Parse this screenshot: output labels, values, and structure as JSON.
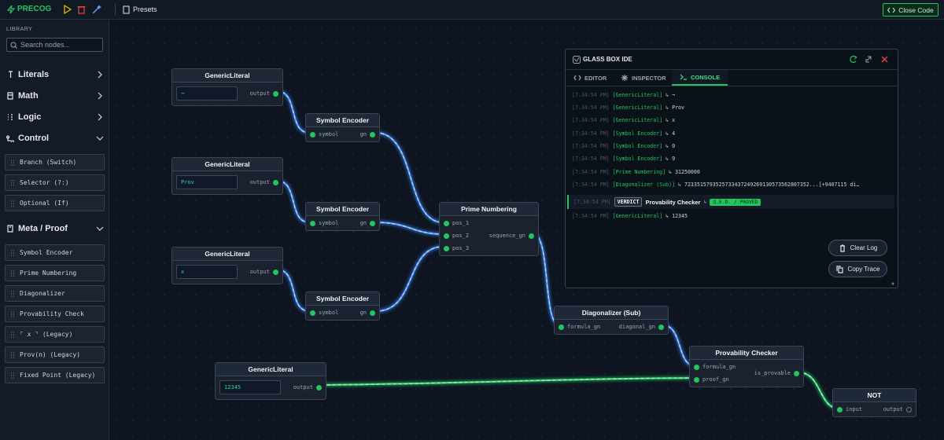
{
  "toolbar": {
    "brand": "PRECOG",
    "presets": "Presets",
    "close": "Close Code"
  },
  "library": {
    "heading": "LIBRARY",
    "search": "Search nodes...",
    "groups": [
      {
        "label": "Literals"
      },
      {
        "label": "Math"
      },
      {
        "label": "Logic"
      },
      {
        "label": "Control",
        "items": [
          "Branch (Switch)",
          "Selector (?:)",
          "Optional (If)"
        ]
      },
      {
        "label": "Meta / Proof",
        "items": [
          "Symbol Encoder",
          "Prime Numbering",
          "Diagonalizer",
          "Provability Check",
          "⌜ x ⌝ (Legacy)",
          "Prov(n) (Legacy)",
          "Fixed Point (Legacy)"
        ]
      }
    ]
  },
  "nodes": [
    {
      "title": "GenericLiteral",
      "value": "¬",
      "outputs": [
        "output"
      ]
    },
    {
      "title": "GenericLiteral",
      "value": "Prov",
      "outputs": [
        "output"
      ]
    },
    {
      "title": "GenericLiteral",
      "value": "x",
      "outputs": [
        "output"
      ]
    },
    {
      "title": "Symbol Encoder",
      "inputs": [
        "symbol"
      ],
      "outputs": [
        "gn"
      ]
    },
    {
      "title": "Symbol Encoder",
      "inputs": [
        "symbol"
      ],
      "outputs": [
        "gn"
      ]
    },
    {
      "title": "Symbol Encoder",
      "inputs": [
        "symbol"
      ],
      "outputs": [
        "gn"
      ]
    },
    {
      "title": "Prime Numbering",
      "inputs": [
        "pos_1",
        "pos_2",
        "pos_3"
      ],
      "outputs": [
        "sequence_gn"
      ]
    },
    {
      "title": "Diagonalizer (Sub)",
      "inputs": [
        "formula_gn"
      ],
      "outputs": [
        "diagonal_gn"
      ]
    },
    {
      "title": "Provability Checker",
      "inputs": [
        "formula_gn",
        "proof_gn"
      ],
      "outputs": [
        "is_provable"
      ]
    },
    {
      "title": "GenericLiteral",
      "value": "12345",
      "outputs": [
        "output"
      ]
    },
    {
      "title": "NOT",
      "inputs": [
        "input"
      ],
      "outputs": [
        "output"
      ]
    }
  ],
  "console": {
    "title": "GLASS BOX IDE",
    "tabs": [
      "EDITOR",
      "INSPECTOR",
      "CONSOLE"
    ],
    "logs": [
      {
        "time": "[7:34:54 PM]",
        "source": "[GenericLiteral]",
        "output": "↳ ¬"
      },
      {
        "time": "[7:34:54 PM]",
        "source": "[GenericLiteral]",
        "output": "↳ Prov"
      },
      {
        "time": "[7:34:54 PM]",
        "source": "[GenericLiteral]",
        "output": "↳ x"
      },
      {
        "time": "[7:34:54 PM]",
        "source": "[Symbol Encoder]",
        "output": "↳ 4"
      },
      {
        "time": "[7:34:54 PM]",
        "source": "[Symbol Encoder]",
        "output": "↳ 0"
      },
      {
        "time": "[7:34:54 PM]",
        "source": "[Symbol Encoder]",
        "output": "↳ 9"
      },
      {
        "time": "[7:34:54 PM]",
        "source": "[Prime Numbering]",
        "output": "↳ 31250000"
      },
      {
        "time": "[7:34:54 PM]",
        "source": "[Diagonalizer (Sub)]",
        "output": "↳ 7233515793525733437249269130573562807352...[+9407115 di…"
      },
      {
        "time": "[7:34:54 PM]",
        "badge": "VERDICT",
        "source": "Provability Checker",
        "output": "↳",
        "result": "Q.E.D. / PROVED"
      },
      {
        "time": "[7:34:54 PM]",
        "source": "[GenericLiteral]",
        "output": "↳ 12345"
      }
    ],
    "buttons": [
      "Clear Log",
      "Copy Trace"
    ]
  }
}
